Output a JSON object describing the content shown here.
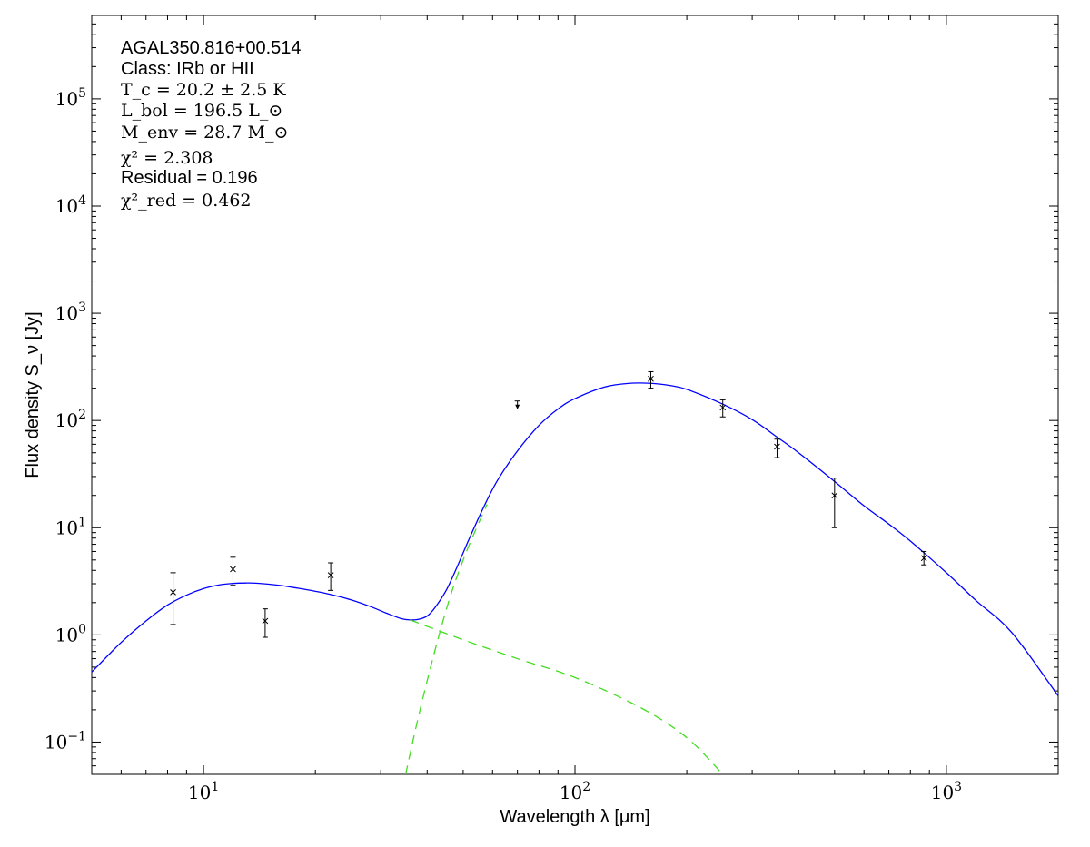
{
  "chart_data": {
    "type": "line",
    "log_x": true,
    "log_y": true,
    "xlim": [
      5,
      2000
    ],
    "ylim": [
      0.05,
      600000
    ],
    "xlabel": "Wavelength λ [μm]",
    "ylabel": "Flux density S_ν [Jy]",
    "x_ticks": [
      {
        "value": 10,
        "base": "10",
        "exp": "1"
      },
      {
        "value": 100,
        "base": "10",
        "exp": "2"
      },
      {
        "value": 1000,
        "base": "10",
        "exp": "3"
      }
    ],
    "y_ticks": [
      {
        "value": 0.1,
        "base": "10",
        "exp": "−1"
      },
      {
        "value": 1,
        "base": "10",
        "exp": "0"
      },
      {
        "value": 10,
        "base": "10",
        "exp": "1"
      },
      {
        "value": 100,
        "base": "10",
        "exp": "2"
      },
      {
        "value": 1000,
        "base": "10",
        "exp": "3"
      },
      {
        "value": 10000,
        "base": "10",
        "exp": "4"
      },
      {
        "value": 100000,
        "base": "10",
        "exp": "5"
      }
    ],
    "grid": false,
    "annotations": {
      "source": "AGAL350.816+00.514",
      "class_label": "Class: IRb or HII",
      "tc": "T_c = 20.2 ± 2.5 K",
      "lbol": "L_bol = 196.5 L_⊙",
      "menv": "M_env = 28.7 M_⊙",
      "chi2": "χ² = 2.308",
      "residual": "Residual = 0.196",
      "chi2red": "χ²_red = 0.462"
    },
    "observations": [
      {
        "x": 8.28,
        "y": 2.5,
        "err_low": 1.25,
        "err_high": 3.8
      },
      {
        "x": 12.0,
        "y": 4.1,
        "err_low": 2.9,
        "err_high": 5.3
      },
      {
        "x": 14.65,
        "y": 1.35,
        "err_low": 0.95,
        "err_high": 1.75
      },
      {
        "x": 22.0,
        "y": 3.6,
        "err_low": 2.6,
        "err_high": 4.7
      },
      {
        "x": 160,
        "y": 245,
        "err_low": 200,
        "err_high": 285
      },
      {
        "x": 250,
        "y": 132,
        "err_low": 108,
        "err_high": 156
      },
      {
        "x": 350,
        "y": 57,
        "err_low": 45,
        "err_high": 67
      },
      {
        "x": 500,
        "y": 20,
        "err_low": 10,
        "err_high": 29
      },
      {
        "x": 870,
        "y": 5.2,
        "err_low": 4.5,
        "err_high": 6.0
      }
    ],
    "upper_limits": [
      {
        "x": 70,
        "y": 152,
        "y_arrow_tip": 130
      }
    ],
    "series": [
      {
        "name": "",
        "style": "solid",
        "color": "#0000ff",
        "points": [
          [
            5,
            0.45
          ],
          [
            6,
            0.85
          ],
          [
            7,
            1.35
          ],
          [
            8,
            1.9
          ],
          [
            9,
            2.35
          ],
          [
            10,
            2.7
          ],
          [
            11,
            2.92
          ],
          [
            12,
            3.02
          ],
          [
            13,
            3.05
          ],
          [
            14,
            3.03
          ],
          [
            16,
            2.9
          ],
          [
            18,
            2.72
          ],
          [
            20,
            2.55
          ],
          [
            22,
            2.38
          ],
          [
            25,
            2.12
          ],
          [
            28,
            1.85
          ],
          [
            31,
            1.6
          ],
          [
            34,
            1.42
          ],
          [
            36,
            1.38
          ],
          [
            38,
            1.4
          ],
          [
            40,
            1.5
          ],
          [
            42,
            1.8
          ],
          [
            45,
            2.6
          ],
          [
            48,
            4.2
          ],
          [
            52,
            8.0
          ],
          [
            57,
            16.0
          ],
          [
            62,
            28.0
          ],
          [
            70,
            52.0
          ],
          [
            80,
            90.0
          ],
          [
            90,
            128.0
          ],
          [
            100,
            160.0
          ],
          [
            120,
            205.0
          ],
          [
            140,
            222.0
          ],
          [
            160,
            222.0
          ],
          [
            180,
            212.0
          ],
          [
            200,
            195.0
          ],
          [
            250,
            142.0
          ],
          [
            300,
            102.0
          ],
          [
            350,
            70.0
          ],
          [
            400,
            50.0
          ],
          [
            500,
            27.0
          ],
          [
            600,
            16.0
          ],
          [
            700,
            10.8
          ],
          [
            800,
            7.5
          ],
          [
            1000,
            3.8
          ],
          [
            1200,
            2.1
          ],
          [
            1500,
            1.05
          ],
          [
            2000,
            0.27
          ]
        ]
      },
      {
        "name": "",
        "style": "dashed",
        "color": "#44dd22",
        "points": [
          [
            36,
            1.38
          ],
          [
            50,
            0.9
          ],
          [
            70,
            0.6
          ],
          [
            100,
            0.4
          ],
          [
            150,
            0.21
          ],
          [
            200,
            0.11
          ],
          [
            250,
            0.05
          ]
        ]
      },
      {
        "name": "",
        "style": "dashed",
        "color": "#44dd22",
        "points": [
          [
            35,
            0.05
          ],
          [
            38,
            0.18
          ],
          [
            42,
            0.72
          ],
          [
            46,
            2.2
          ],
          [
            50,
            5.0
          ],
          [
            54,
            9.5
          ],
          [
            58,
            16.5
          ]
        ]
      }
    ]
  }
}
